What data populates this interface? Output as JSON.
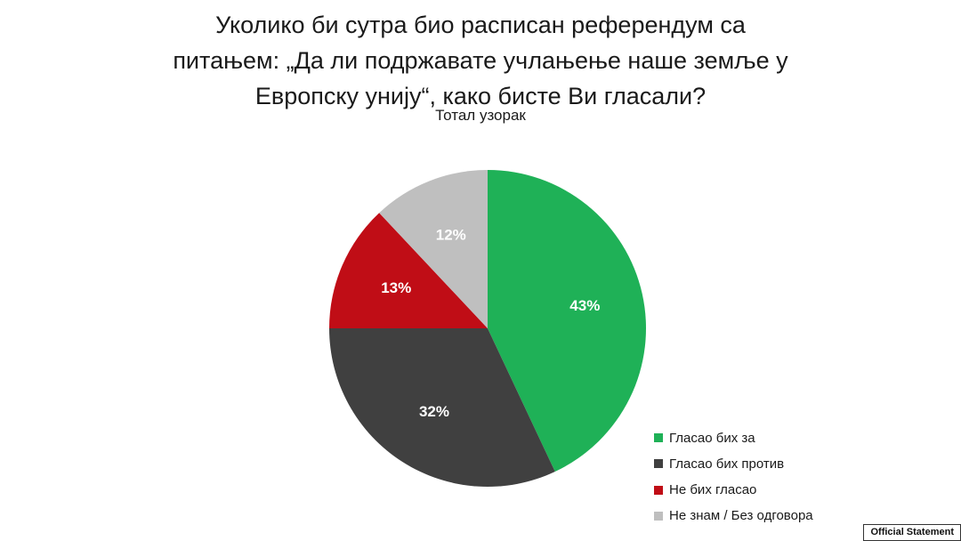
{
  "title_lines": [
    "Уколико би сутра био расписан референдум са",
    "питањем: „Да ли подржавате учлањење наше земље у",
    "Европску унију“, како бисте Ви гласали?"
  ],
  "subtitle": "Тотал узорак",
  "chart_data": {
    "type": "pie",
    "title": "Уколико би сутра био расписан референдум са питањем: „Да ли подржавате учлањење наше земље у Европску унију“, како бисте Ви гласали?",
    "subtitle": "Тотал узорак",
    "legend_position": "bottom-right",
    "slices": [
      {
        "label": "Гласао бих за",
        "value": 43,
        "display": "43%",
        "color": "#1fb157"
      },
      {
        "label": "Гласао бих против",
        "value": 32,
        "display": "32%",
        "color": "#404040"
      },
      {
        "label": "Не бих гласао",
        "value": 13,
        "display": "13%",
        "color": "#c00d16"
      },
      {
        "label": "Не знам / Без одговора",
        "value": 12,
        "display": "12%",
        "color": "#bfbfbf"
      }
    ]
  },
  "footer_badge": "Official Statement"
}
